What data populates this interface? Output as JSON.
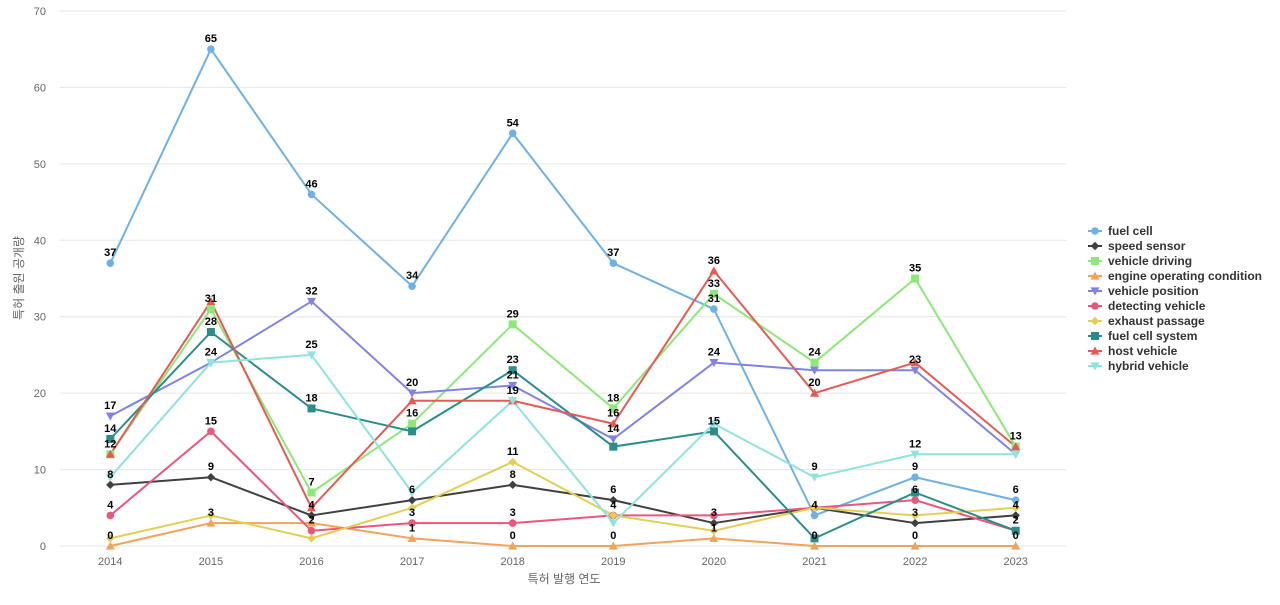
{
  "chart_data": {
    "type": "line",
    "xlabel": "특허 발행 연도",
    "ylabel": "특허 출원 공개량",
    "x": [
      2014,
      2015,
      2016,
      2017,
      2018,
      2019,
      2020,
      2021,
      2022,
      2023
    ],
    "ylim": [
      0,
      70
    ],
    "yticks": [
      0,
      10,
      20,
      30,
      40,
      50,
      60,
      70
    ],
    "grid": true,
    "legend_position": "right",
    "series": [
      {
        "name": "fuel cell",
        "color": "#6fb1e4",
        "marker": "circle",
        "values": [
          37,
          65,
          46,
          34,
          54,
          37,
          31,
          4,
          9,
          6
        ]
      },
      {
        "name": "speed sensor",
        "color": "#404040",
        "marker": "diamond",
        "values": [
          8,
          9,
          4,
          6,
          8,
          6,
          3,
          5,
          3,
          4
        ]
      },
      {
        "name": "vehicle driving",
        "color": "#8ee879",
        "marker": "square",
        "values": [
          12,
          31,
          7,
          16,
          29,
          18,
          33,
          24,
          35,
          13
        ]
      },
      {
        "name": "engine operating condition",
        "color": "#f0a35a",
        "marker": "triangle-up",
        "values": [
          0,
          3,
          3,
          1,
          0,
          0,
          1,
          0,
          0,
          0
        ]
      },
      {
        "name": "vehicle position",
        "color": "#7f83e4",
        "marker": "triangle-down",
        "values": [
          17,
          24,
          32,
          20,
          21,
          14,
          24,
          23,
          23,
          12
        ]
      },
      {
        "name": "detecting vehicle",
        "color": "#e9577a",
        "marker": "circle",
        "values": [
          4,
          15,
          2,
          3,
          3,
          4,
          4,
          5,
          6,
          2
        ]
      },
      {
        "name": "exhaust passage",
        "color": "#e3cf55",
        "marker": "diamond",
        "values": [
          1,
          4,
          1,
          5,
          11,
          4,
          2,
          5,
          4,
          5
        ]
      },
      {
        "name": "fuel cell system",
        "color": "#2a8d8a",
        "marker": "square",
        "values": [
          14,
          28,
          18,
          15,
          23,
          13,
          15,
          1,
          7,
          2
        ]
      },
      {
        "name": "host vehicle",
        "color": "#e65a55",
        "marker": "triangle-up",
        "values": [
          12,
          32,
          5,
          19,
          19,
          16,
          36,
          20,
          24,
          13
        ]
      },
      {
        "name": "hybrid vehicle",
        "color": "#8fe3dc",
        "marker": "triangle-down",
        "values": [
          9,
          24,
          25,
          7,
          19,
          3,
          16,
          9,
          12,
          12
        ]
      }
    ],
    "data_labels": [
      {
        "x": 2014,
        "y": 37,
        "text": "37"
      },
      {
        "x": 2014,
        "y": 17,
        "text": "17"
      },
      {
        "x": 2014,
        "y": 14,
        "text": "14"
      },
      {
        "x": 2014,
        "y": 12,
        "text": "12"
      },
      {
        "x": 2014,
        "y": 8,
        "text": "8"
      },
      {
        "x": 2014,
        "y": 4,
        "text": "4"
      },
      {
        "x": 2014,
        "y": 0,
        "text": "0"
      },
      {
        "x": 2015,
        "y": 65,
        "text": "65"
      },
      {
        "x": 2015,
        "y": 31,
        "text": "31"
      },
      {
        "x": 2015,
        "y": 28,
        "text": "28"
      },
      {
        "x": 2015,
        "y": 24,
        "text": "24"
      },
      {
        "x": 2015,
        "y": 15,
        "text": "15"
      },
      {
        "x": 2015,
        "y": 9,
        "text": "9"
      },
      {
        "x": 2015,
        "y": 3,
        "text": "3"
      },
      {
        "x": 2016,
        "y": 46,
        "text": "46"
      },
      {
        "x": 2016,
        "y": 32,
        "text": "32"
      },
      {
        "x": 2016,
        "y": 25,
        "text": "25"
      },
      {
        "x": 2016,
        "y": 18,
        "text": "18"
      },
      {
        "x": 2016,
        "y": 7,
        "text": "7"
      },
      {
        "x": 2016,
        "y": 4,
        "text": "4"
      },
      {
        "x": 2016,
        "y": 2,
        "text": "2"
      },
      {
        "x": 2017,
        "y": 34,
        "text": "34"
      },
      {
        "x": 2017,
        "y": 20,
        "text": "20"
      },
      {
        "x": 2017,
        "y": 16,
        "text": "16"
      },
      {
        "x": 2017,
        "y": 6,
        "text": "6"
      },
      {
        "x": 2017,
        "y": 3,
        "text": "3"
      },
      {
        "x": 2017,
        "y": 1,
        "text": "1"
      },
      {
        "x": 2018,
        "y": 54,
        "text": "54"
      },
      {
        "x": 2018,
        "y": 29,
        "text": "29"
      },
      {
        "x": 2018,
        "y": 23,
        "text": "23"
      },
      {
        "x": 2018,
        "y": 21,
        "text": "21"
      },
      {
        "x": 2018,
        "y": 19,
        "text": "19"
      },
      {
        "x": 2018,
        "y": 11,
        "text": "11"
      },
      {
        "x": 2018,
        "y": 8,
        "text": "8"
      },
      {
        "x": 2018,
        "y": 3,
        "text": "3"
      },
      {
        "x": 2018,
        "y": 0,
        "text": "0"
      },
      {
        "x": 2019,
        "y": 37,
        "text": "37"
      },
      {
        "x": 2019,
        "y": 18,
        "text": "18"
      },
      {
        "x": 2019,
        "y": 16,
        "text": "16"
      },
      {
        "x": 2019,
        "y": 14,
        "text": "14"
      },
      {
        "x": 2019,
        "y": 6,
        "text": "6"
      },
      {
        "x": 2019,
        "y": 4,
        "text": "4"
      },
      {
        "x": 2019,
        "y": 0,
        "text": "0"
      },
      {
        "x": 2020,
        "y": 36,
        "text": "36"
      },
      {
        "x": 2020,
        "y": 33,
        "text": "33"
      },
      {
        "x": 2020,
        "y": 31,
        "text": "31"
      },
      {
        "x": 2020,
        "y": 24,
        "text": "24"
      },
      {
        "x": 2020,
        "y": 15,
        "text": "15"
      },
      {
        "x": 2020,
        "y": 3,
        "text": "3"
      },
      {
        "x": 2020,
        "y": 1,
        "text": "1"
      },
      {
        "x": 2021,
        "y": 24,
        "text": "24"
      },
      {
        "x": 2021,
        "y": 20,
        "text": "20"
      },
      {
        "x": 2021,
        "y": 9,
        "text": "9"
      },
      {
        "x": 2021,
        "y": 4,
        "text": "4"
      },
      {
        "x": 2021,
        "y": 0,
        "text": "0"
      },
      {
        "x": 2022,
        "y": 35,
        "text": "35"
      },
      {
        "x": 2022,
        "y": 23,
        "text": "23"
      },
      {
        "x": 2022,
        "y": 12,
        "text": "12"
      },
      {
        "x": 2022,
        "y": 9,
        "text": "9"
      },
      {
        "x": 2022,
        "y": 6,
        "text": "6"
      },
      {
        "x": 2022,
        "y": 3,
        "text": "3"
      },
      {
        "x": 2022,
        "y": 0,
        "text": "0"
      },
      {
        "x": 2023,
        "y": 13,
        "text": "13"
      },
      {
        "x": 2023,
        "y": 6,
        "text": "6"
      },
      {
        "x": 2023,
        "y": 4,
        "text": "4"
      },
      {
        "x": 2023,
        "y": 2,
        "text": "2"
      },
      {
        "x": 2023,
        "y": 0,
        "text": "0"
      }
    ]
  }
}
